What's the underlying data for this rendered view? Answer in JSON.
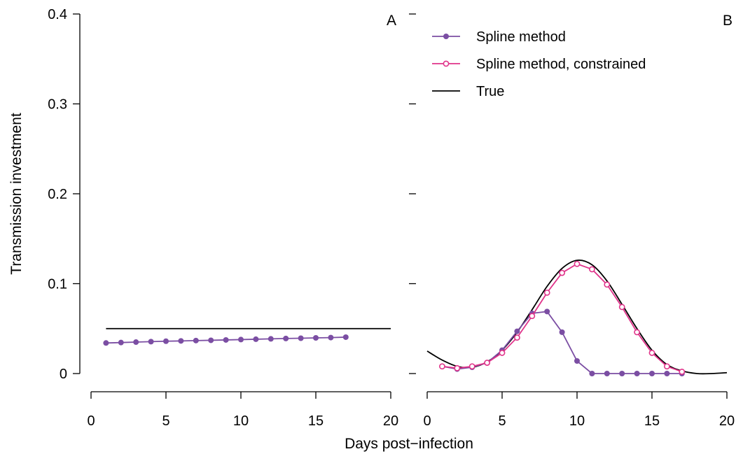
{
  "chart_data": {
    "type": "line",
    "ylabel": "Transmission investment",
    "xlabel": "Days post−infection",
    "ylim": [
      0,
      0.4
    ],
    "y_ticks": [
      0,
      0.1,
      0.2,
      0.3,
      0.4
    ],
    "y_tick_labels": [
      "0",
      "0.1",
      "0.2",
      "0.3",
      "0.4"
    ],
    "x_ticks": [
      0,
      5,
      10,
      15,
      20
    ],
    "x_tick_labels": [
      "0",
      "5",
      "10",
      "15",
      "20"
    ],
    "colors": {
      "spline": "#7b4ea3",
      "constrained": "#e0338a",
      "true": "#000000"
    },
    "panels": [
      {
        "label": "A",
        "xlim": [
          0,
          20
        ],
        "series": [
          {
            "name": "Spline method",
            "x": [
              1,
              2,
              3,
              4,
              5,
              6,
              7,
              8,
              9,
              10,
              11,
              12,
              13,
              14,
              15,
              16,
              17
            ],
            "y": [
              0.034,
              0.0345,
              0.035,
              0.0355,
              0.036,
              0.0363,
              0.0367,
              0.037,
              0.0374,
              0.0378,
              0.0382,
              0.0386,
              0.039,
              0.0393,
              0.0397,
              0.04,
              0.0405
            ]
          },
          {
            "name": "True",
            "x": [
              1,
              20
            ],
            "y": [
              0.05,
              0.05
            ]
          }
        ]
      },
      {
        "label": "B",
        "xlim": [
          0,
          20
        ],
        "series": [
          {
            "name": "Spline method",
            "x": [
              1,
              2,
              3,
              4,
              5,
              6,
              7,
              8,
              9,
              10,
              11,
              12,
              13,
              14,
              15,
              16,
              17
            ],
            "y": [
              0.008,
              0.005,
              0.007,
              0.012,
              0.026,
              0.047,
              0.067,
              0.069,
              0.046,
              0.014,
              0.0,
              0.0,
              0.0,
              0.0,
              0.0,
              0.0,
              0.0
            ]
          },
          {
            "name": "Spline method, constrained",
            "x": [
              1,
              2,
              3,
              4,
              5,
              6,
              7,
              8,
              9,
              10,
              11,
              12,
              13,
              14,
              15,
              16,
              17
            ],
            "y": [
              0.008,
              0.006,
              0.008,
              0.012,
              0.023,
              0.04,
              0.064,
              0.09,
              0.112,
              0.122,
              0.116,
              0.099,
              0.074,
              0.046,
              0.023,
              0.008,
              0.002
            ]
          },
          {
            "name": "True",
            "x": [
              0,
              1,
              2,
              3,
              4,
              5,
              6,
              7,
              8,
              9,
              10,
              11,
              12,
              13,
              14,
              15,
              16,
              17,
              18,
              19,
              20
            ],
            "y": [
              0.025,
              0.015,
              0.008,
              0.007,
              0.013,
              0.026,
              0.046,
              0.071,
              0.097,
              0.117,
              0.126,
              0.121,
              0.103,
              0.077,
              0.05,
              0.026,
              0.01,
              0.003,
              0.0,
              0.0,
              0.001
            ]
          }
        ]
      }
    ],
    "legend": {
      "placement": "top-left of panel B",
      "entries": [
        "Spline method",
        "Spline method, constrained",
        "True"
      ]
    }
  }
}
